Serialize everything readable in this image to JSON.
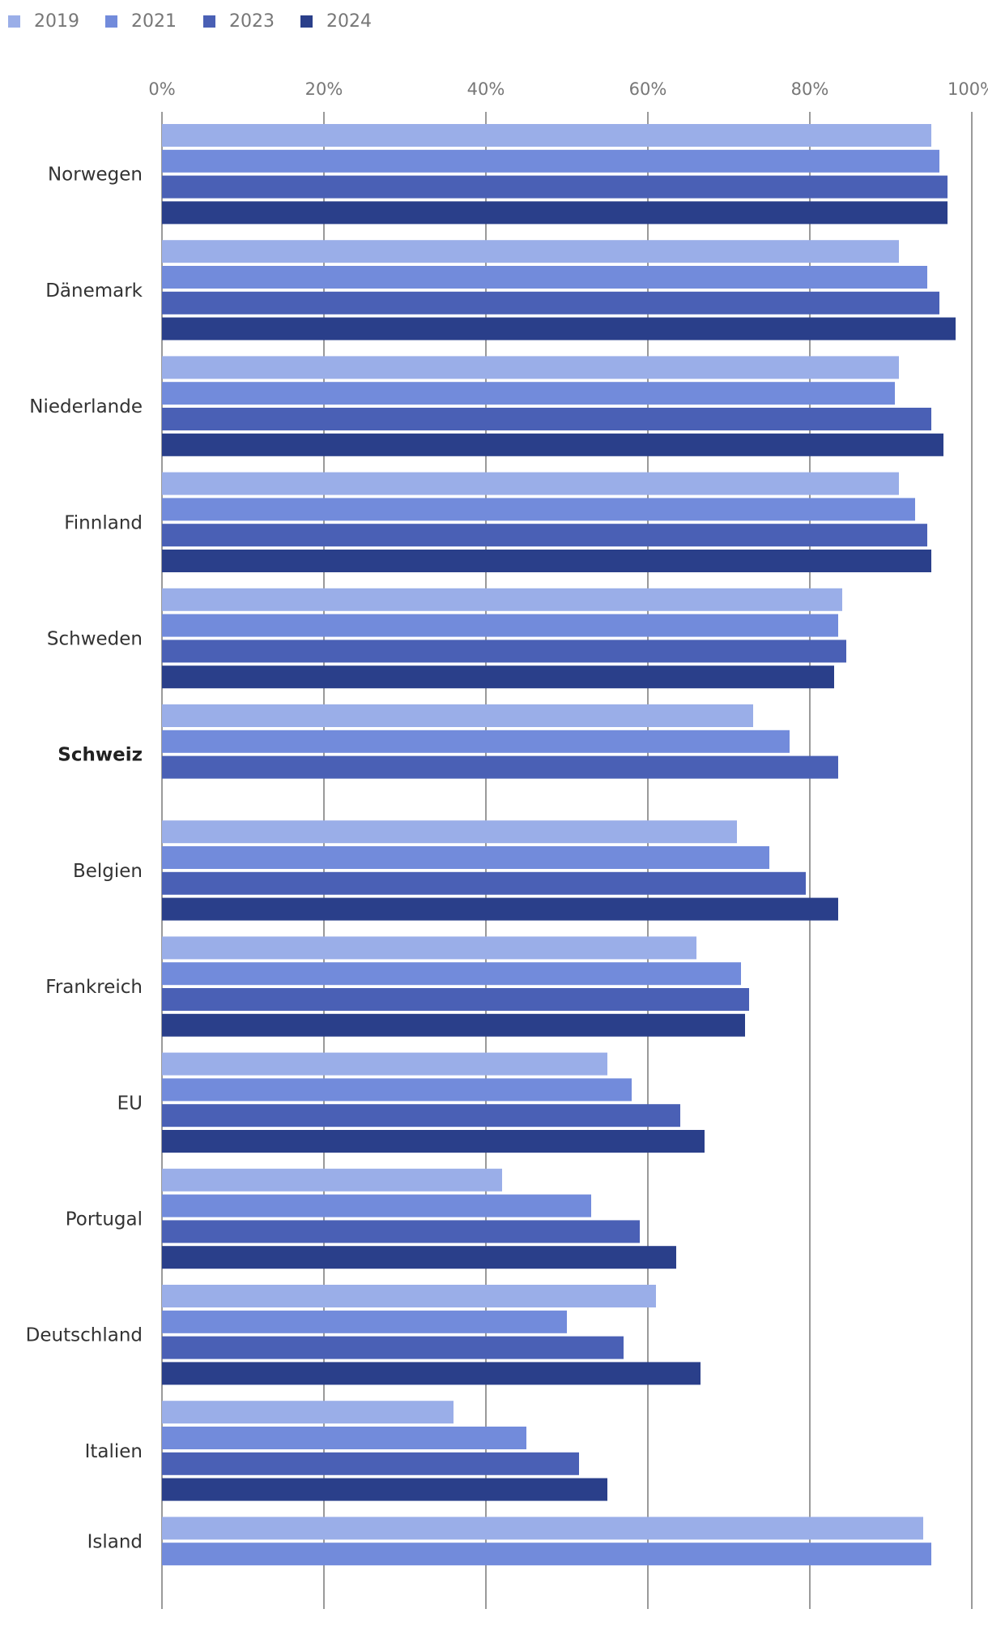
{
  "chart_data": {
    "type": "bar",
    "orientation": "horizontal",
    "title": "",
    "xlabel": "",
    "ylabel": "",
    "xlim": [
      0,
      100
    ],
    "ticks": [
      "0%",
      "20%",
      "40%",
      "60%",
      "80%",
      "100%"
    ],
    "tick_values": [
      0,
      20,
      40,
      60,
      80,
      100
    ],
    "grid": true,
    "legend_position": "top-left",
    "categories": [
      "Norwegen",
      "Dänemark",
      "Niederlande",
      "Finnland",
      "Schweden",
      "Schweiz",
      "Belgien",
      "Frankreich",
      "EU",
      "Portugal",
      "Deutschland",
      "Italien",
      "Island"
    ],
    "highlight_category": "Schweiz",
    "series": [
      {
        "name": "2019",
        "color": "#9aaee8",
        "values": [
          95,
          91,
          91,
          91,
          84,
          73,
          71,
          66,
          55,
          42,
          61,
          36,
          94
        ]
      },
      {
        "name": "2021",
        "color": "#728bdb",
        "values": [
          96,
          94.5,
          90.5,
          93,
          83.5,
          77.5,
          75,
          71.5,
          58,
          53,
          50,
          45,
          95
        ]
      },
      {
        "name": "2023",
        "color": "#4a60b5",
        "values": [
          97,
          96,
          95,
          94.5,
          84.5,
          83.5,
          79.5,
          72.5,
          64,
          59,
          57,
          51.5,
          null
        ]
      },
      {
        "name": "2024",
        "color": "#2a3f8a",
        "values": [
          97,
          98,
          96.5,
          95,
          83,
          null,
          83.5,
          72,
          67,
          63.5,
          66.5,
          55,
          null
        ]
      }
    ]
  }
}
